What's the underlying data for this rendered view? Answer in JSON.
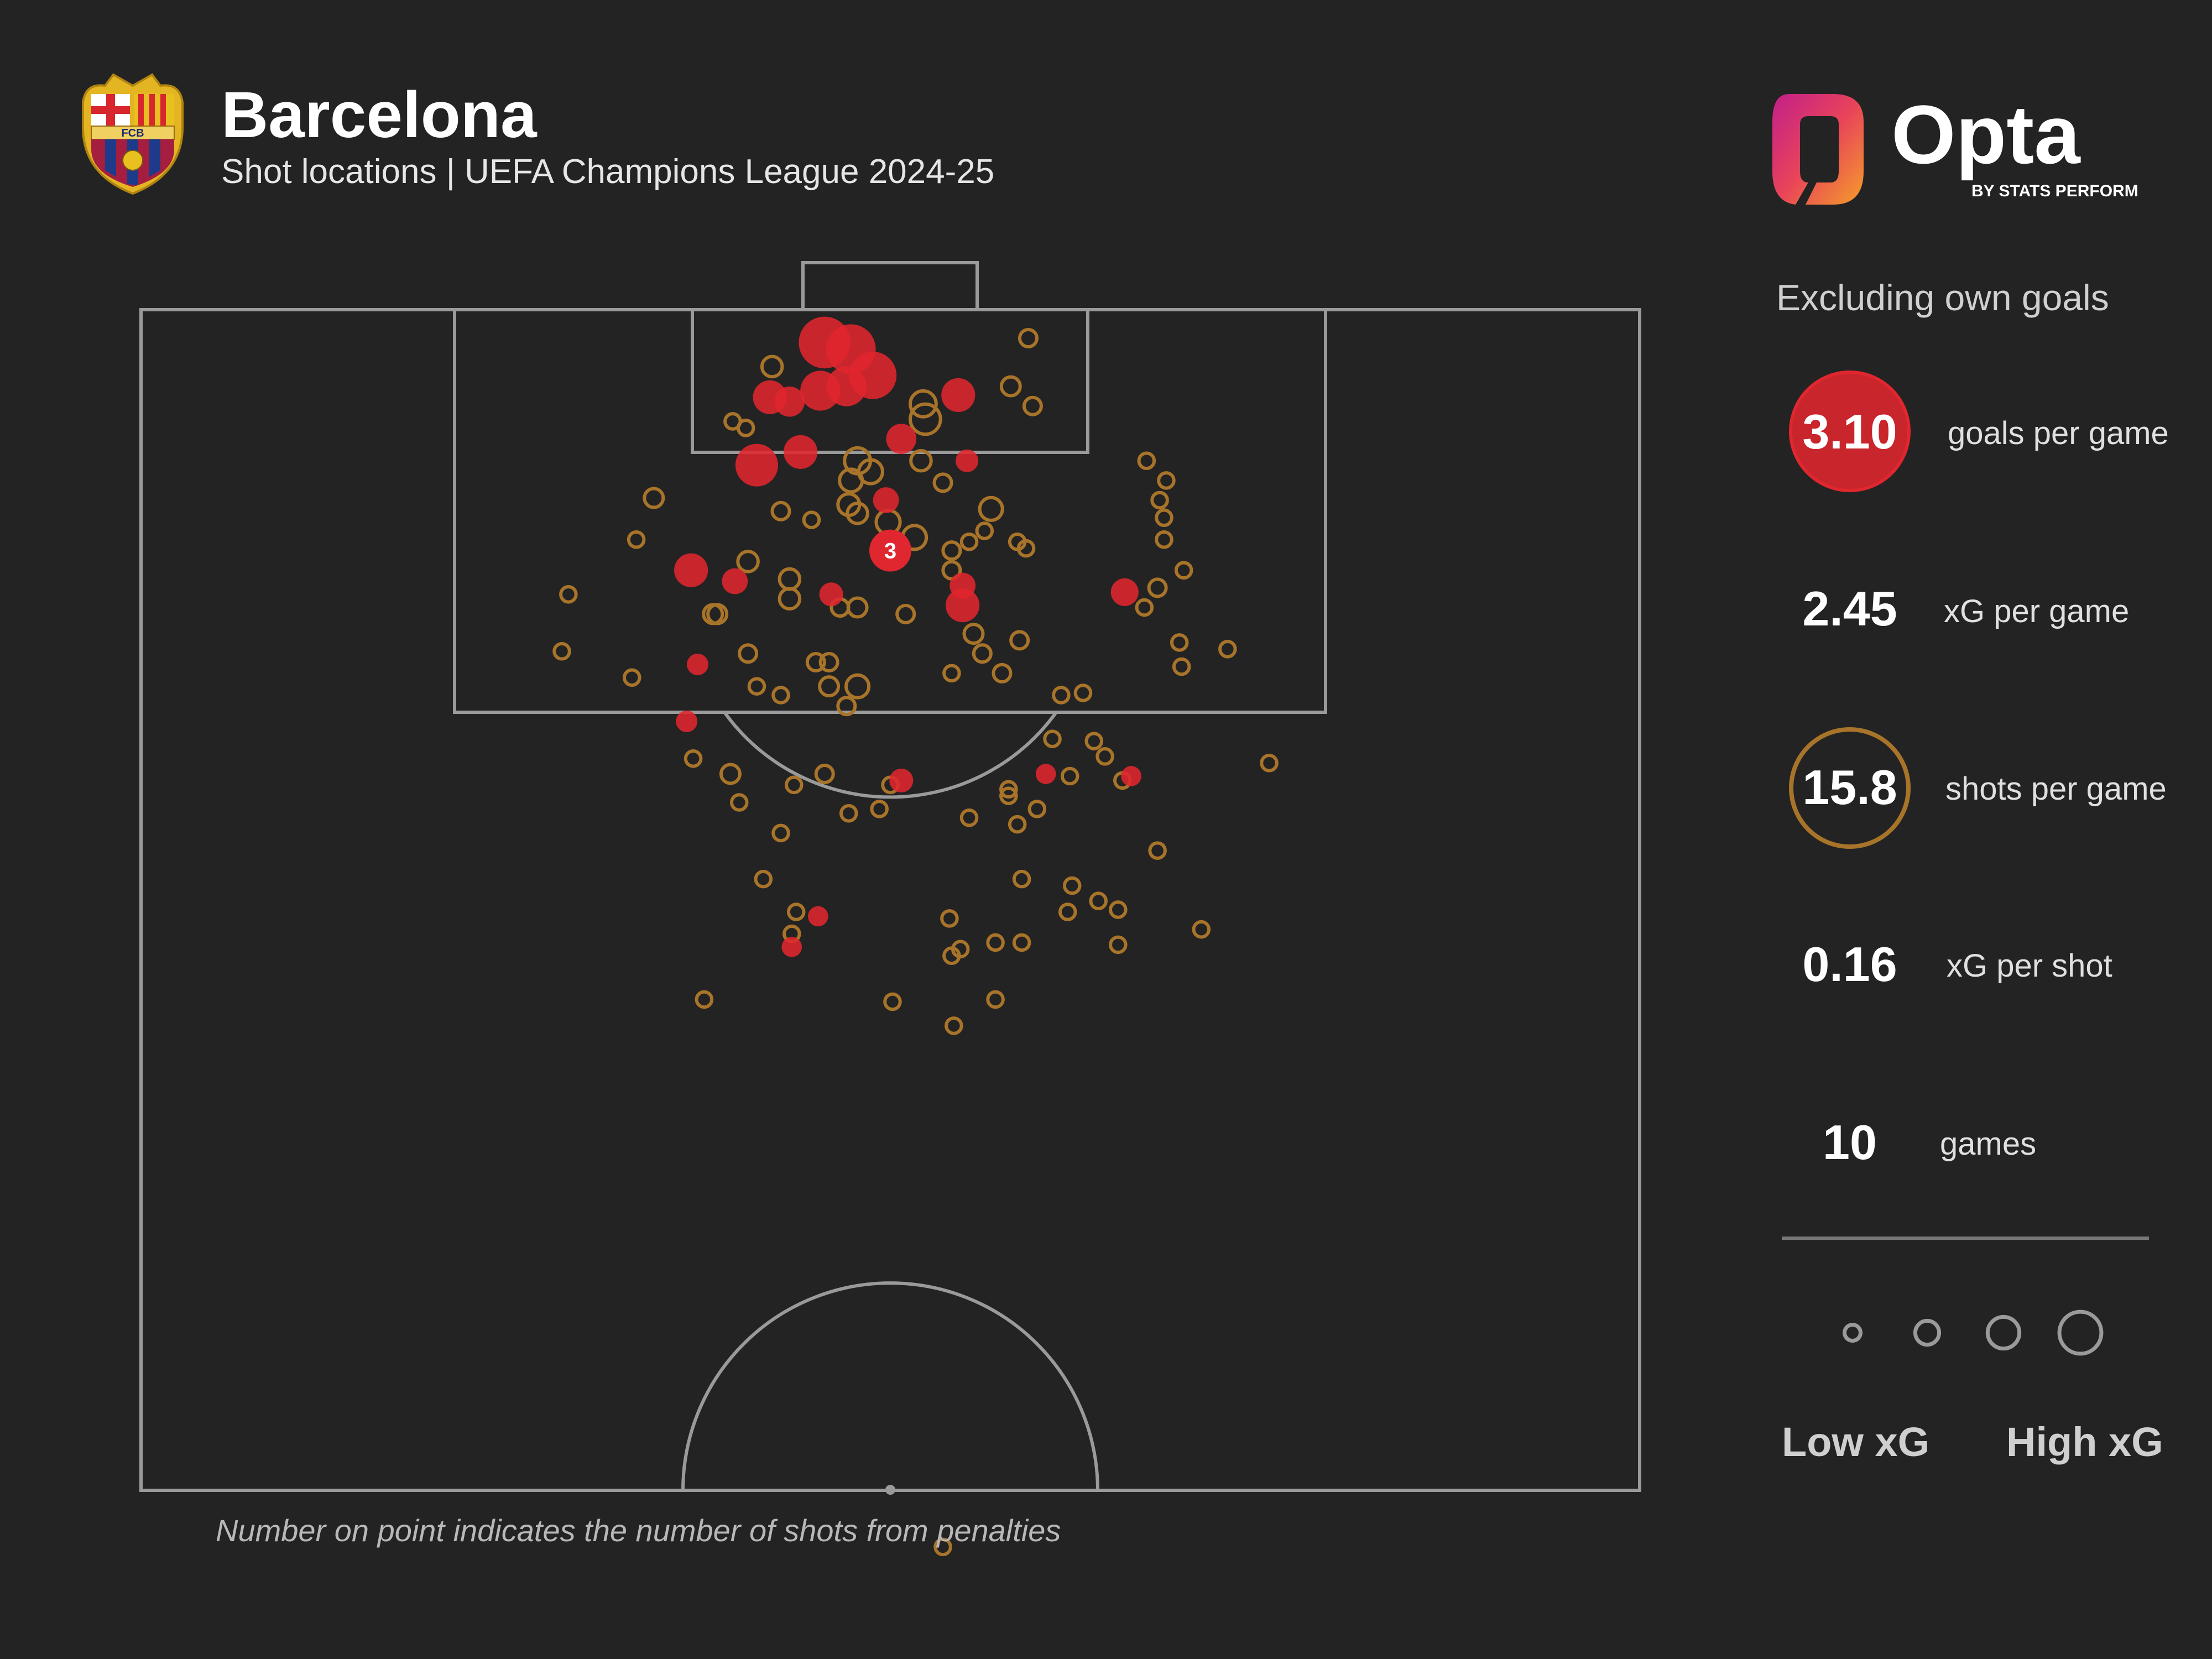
{
  "header": {
    "title": "Barcelona",
    "subtitle": "Shot locations | UEFA Champions League 2024-25",
    "crest_text": "FCB"
  },
  "brand": {
    "name": "Opta",
    "tagline": "BY STATS PERFORM"
  },
  "colors": {
    "background": "#232323",
    "goal": "#e0262e",
    "shot": "#a8742a",
    "lines": "#9a9a9a"
  },
  "panel": {
    "note": "Excluding own goals",
    "stats": [
      {
        "value": "3.10",
        "label": "goals per game"
      },
      {
        "value": "2.45",
        "label": "xG per game"
      },
      {
        "value": "15.8",
        "label": "shots per game"
      },
      {
        "value": "0.16",
        "label": "xG per shot"
      },
      {
        "value": "10",
        "label": "games"
      }
    ],
    "legend_low": "Low xG",
    "legend_high": "High xG"
  },
  "footnote": "Number on point indicates the number of shots from penalties",
  "chart_data": {
    "type": "scatter",
    "units": "horizontal metres from pitch centre (x), metres from goal line (y); xG proportional to marker area",
    "annotation": {
      "x": 0,
      "y": 11,
      "text": "3",
      "outcome": "goal"
    },
    "points": [
      {
        "x": -3.0,
        "y": 1.5,
        "xg": 0.55,
        "outcome": "goal"
      },
      {
        "x": -1.8,
        "y": 1.8,
        "xg": 0.5,
        "outcome": "goal"
      },
      {
        "x": -0.8,
        "y": 3.0,
        "xg": 0.45,
        "outcome": "goal"
      },
      {
        "x": -2.0,
        "y": 3.5,
        "xg": 0.3,
        "outcome": "goal"
      },
      {
        "x": -3.2,
        "y": 3.7,
        "xg": 0.3,
        "outcome": "goal"
      },
      {
        "x": -5.5,
        "y": 4.0,
        "xg": 0.2,
        "outcome": "goal"
      },
      {
        "x": -4.6,
        "y": 4.2,
        "xg": 0.15,
        "outcome": "goal"
      },
      {
        "x": 3.1,
        "y": 3.9,
        "xg": 0.2,
        "outcome": "goal"
      },
      {
        "x": -6.1,
        "y": 7.1,
        "xg": 0.35,
        "outcome": "goal"
      },
      {
        "x": -4.1,
        "y": 6.5,
        "xg": 0.2,
        "outcome": "goal"
      },
      {
        "x": 0.5,
        "y": 5.9,
        "xg": 0.15,
        "outcome": "goal"
      },
      {
        "x": 3.5,
        "y": 6.9,
        "xg": 0.07,
        "outcome": "goal"
      },
      {
        "x": -0.2,
        "y": 8.7,
        "xg": 0.1,
        "outcome": "goal"
      },
      {
        "x": -9.1,
        "y": 11.9,
        "xg": 0.2,
        "outcome": "goal"
      },
      {
        "x": -7.1,
        "y": 12.4,
        "xg": 0.1,
        "outcome": "goal"
      },
      {
        "x": -2.7,
        "y": 13.0,
        "xg": 0.08,
        "outcome": "goal"
      },
      {
        "x": 3.3,
        "y": 12.6,
        "xg": 0.1,
        "outcome": "goal"
      },
      {
        "x": 3.3,
        "y": 13.5,
        "xg": 0.2,
        "outcome": "goal"
      },
      {
        "x": 10.7,
        "y": 12.9,
        "xg": 0.12,
        "outcome": "goal"
      },
      {
        "x": -8.8,
        "y": 16.2,
        "xg": 0.06,
        "outcome": "goal"
      },
      {
        "x": -9.3,
        "y": 18.8,
        "xg": 0.06,
        "outcome": "goal"
      },
      {
        "x": 0.5,
        "y": 21.5,
        "xg": 0.08,
        "outcome": "goal"
      },
      {
        "x": 7.1,
        "y": 21.2,
        "xg": 0.05,
        "outcome": "goal"
      },
      {
        "x": 11.0,
        "y": 21.3,
        "xg": 0.05,
        "outcome": "goal"
      },
      {
        "x": -3.3,
        "y": 27.7,
        "xg": 0.05,
        "outcome": "goal"
      },
      {
        "x": -4.5,
        "y": 29.1,
        "xg": 0.05,
        "outcome": "goal"
      },
      {
        "x": -5.4,
        "y": 2.6,
        "xg": 0.05,
        "outcome": "shot"
      },
      {
        "x": 6.3,
        "y": 1.3,
        "xg": 0.03,
        "outcome": "shot"
      },
      {
        "x": 5.5,
        "y": 3.5,
        "xg": 0.04,
        "outcome": "shot"
      },
      {
        "x": 6.5,
        "y": 4.4,
        "xg": 0.03,
        "outcome": "shot"
      },
      {
        "x": 1.5,
        "y": 4.3,
        "xg": 0.1,
        "outcome": "shot"
      },
      {
        "x": 1.6,
        "y": 5.0,
        "xg": 0.15,
        "outcome": "shot"
      },
      {
        "x": -7.2,
        "y": 5.1,
        "xg": 0.02,
        "outcome": "shot"
      },
      {
        "x": -6.6,
        "y": 5.4,
        "xg": 0.02,
        "outcome": "shot"
      },
      {
        "x": -1.5,
        "y": 6.9,
        "xg": 0.1,
        "outcome": "shot"
      },
      {
        "x": -0.9,
        "y": 7.4,
        "xg": 0.08,
        "outcome": "shot"
      },
      {
        "x": -1.8,
        "y": 7.8,
        "xg": 0.07,
        "outcome": "shot"
      },
      {
        "x": 1.4,
        "y": 6.9,
        "xg": 0.05,
        "outcome": "shot"
      },
      {
        "x": 2.4,
        "y": 7.9,
        "xg": 0.03,
        "outcome": "shot"
      },
      {
        "x": -1.9,
        "y": 8.9,
        "xg": 0.06,
        "outcome": "shot"
      },
      {
        "x": -1.5,
        "y": 9.3,
        "xg": 0.05,
        "outcome": "shot"
      },
      {
        "x": -0.1,
        "y": 9.7,
        "xg": 0.08,
        "outcome": "shot"
      },
      {
        "x": 1.1,
        "y": 10.4,
        "xg": 0.08,
        "outcome": "shot"
      },
      {
        "x": -5.0,
        "y": 9.2,
        "xg": 0.03,
        "outcome": "shot"
      },
      {
        "x": -3.6,
        "y": 9.6,
        "xg": 0.02,
        "outcome": "shot"
      },
      {
        "x": -10.8,
        "y": 8.6,
        "xg": 0.04,
        "outcome": "shot"
      },
      {
        "x": -11.6,
        "y": 10.5,
        "xg": 0.02,
        "outcome": "shot"
      },
      {
        "x": -14.7,
        "y": 13.0,
        "xg": 0.02,
        "outcome": "shot"
      },
      {
        "x": -15.0,
        "y": 15.6,
        "xg": 0.02,
        "outcome": "shot"
      },
      {
        "x": -6.5,
        "y": 11.5,
        "xg": 0.05,
        "outcome": "shot"
      },
      {
        "x": -4.6,
        "y": 12.3,
        "xg": 0.05,
        "outcome": "shot"
      },
      {
        "x": -4.6,
        "y": 13.2,
        "xg": 0.05,
        "outcome": "shot"
      },
      {
        "x": -7.9,
        "y": 13.9,
        "xg": 0.04,
        "outcome": "shot"
      },
      {
        "x": -8.1,
        "y": 13.9,
        "xg": 0.04,
        "outcome": "shot"
      },
      {
        "x": -2.3,
        "y": 13.6,
        "xg": 0.03,
        "outcome": "shot"
      },
      {
        "x": -1.5,
        "y": 13.6,
        "xg": 0.04,
        "outcome": "shot"
      },
      {
        "x": 0.7,
        "y": 13.9,
        "xg": 0.03,
        "outcome": "shot"
      },
      {
        "x": -6.5,
        "y": 15.7,
        "xg": 0.03,
        "outcome": "shot"
      },
      {
        "x": -3.4,
        "y": 16.1,
        "xg": 0.03,
        "outcome": "shot"
      },
      {
        "x": -2.8,
        "y": 16.1,
        "xg": 0.03,
        "outcome": "shot"
      },
      {
        "x": -2.8,
        "y": 17.2,
        "xg": 0.04,
        "outcome": "shot"
      },
      {
        "x": -1.5,
        "y": 17.2,
        "xg": 0.07,
        "outcome": "shot"
      },
      {
        "x": -2.0,
        "y": 18.1,
        "xg": 0.03,
        "outcome": "shot"
      },
      {
        "x": -5.0,
        "y": 17.6,
        "xg": 0.02,
        "outcome": "shot"
      },
      {
        "x": 2.8,
        "y": 11.0,
        "xg": 0.03,
        "outcome": "shot"
      },
      {
        "x": 2.8,
        "y": 11.9,
        "xg": 0.03,
        "outcome": "shot"
      },
      {
        "x": 3.6,
        "y": 10.6,
        "xg": 0.02,
        "outcome": "shot"
      },
      {
        "x": 4.3,
        "y": 10.1,
        "xg": 0.02,
        "outcome": "shot"
      },
      {
        "x": 4.6,
        "y": 9.1,
        "xg": 0.07,
        "outcome": "shot"
      },
      {
        "x": 3.8,
        "y": 14.8,
        "xg": 0.04,
        "outcome": "shot"
      },
      {
        "x": 4.2,
        "y": 15.7,
        "xg": 0.03,
        "outcome": "shot"
      },
      {
        "x": 5.9,
        "y": 15.1,
        "xg": 0.03,
        "outcome": "shot"
      },
      {
        "x": 5.1,
        "y": 16.6,
        "xg": 0.03,
        "outcome": "shot"
      },
      {
        "x": 2.8,
        "y": 16.6,
        "xg": 0.02,
        "outcome": "shot"
      },
      {
        "x": 5.8,
        "y": 10.6,
        "xg": 0.02,
        "outcome": "shot"
      },
      {
        "x": 6.2,
        "y": 10.9,
        "xg": 0.02,
        "outcome": "shot"
      },
      {
        "x": 7.4,
        "y": 19.6,
        "xg": 0.02,
        "outcome": "shot"
      },
      {
        "x": 7.8,
        "y": 17.6,
        "xg": 0.02,
        "outcome": "shot"
      },
      {
        "x": 8.8,
        "y": 17.5,
        "xg": 0.02,
        "outcome": "shot"
      },
      {
        "x": 5.4,
        "y": 21.9,
        "xg": 0.02,
        "outcome": "shot"
      },
      {
        "x": 5.4,
        "y": 22.2,
        "xg": 0.02,
        "outcome": "shot"
      },
      {
        "x": 3.6,
        "y": 23.2,
        "xg": 0.02,
        "outcome": "shot"
      },
      {
        "x": 5.8,
        "y": 23.5,
        "xg": 0.02,
        "outcome": "shot"
      },
      {
        "x": 6.7,
        "y": 22.8,
        "xg": 0.02,
        "outcome": "shot"
      },
      {
        "x": 8.2,
        "y": 21.3,
        "xg": 0.02,
        "outcome": "shot"
      },
      {
        "x": 9.3,
        "y": 19.7,
        "xg": 0.02,
        "outcome": "shot"
      },
      {
        "x": 9.8,
        "y": 20.4,
        "xg": 0.02,
        "outcome": "shot"
      },
      {
        "x": 10.6,
        "y": 21.5,
        "xg": 0.02,
        "outcome": "shot"
      },
      {
        "x": 12.2,
        "y": 12.7,
        "xg": 0.03,
        "outcome": "shot"
      },
      {
        "x": 13.4,
        "y": 11.9,
        "xg": 0.02,
        "outcome": "shot"
      },
      {
        "x": 12.5,
        "y": 10.5,
        "xg": 0.02,
        "outcome": "shot"
      },
      {
        "x": 12.5,
        "y": 9.5,
        "xg": 0.02,
        "outcome": "shot"
      },
      {
        "x": 12.6,
        "y": 7.8,
        "xg": 0.02,
        "outcome": "shot"
      },
      {
        "x": 11.7,
        "y": 6.9,
        "xg": 0.02,
        "outcome": "shot"
      },
      {
        "x": 12.3,
        "y": 8.7,
        "xg": 0.02,
        "outcome": "shot"
      },
      {
        "x": 13.2,
        "y": 15.2,
        "xg": 0.02,
        "outcome": "shot"
      },
      {
        "x": 13.3,
        "y": 16.3,
        "xg": 0.02,
        "outcome": "shot"
      },
      {
        "x": 15.4,
        "y": 15.5,
        "xg": 0.02,
        "outcome": "shot"
      },
      {
        "x": 11.6,
        "y": 13.6,
        "xg": 0.02,
        "outcome": "shot"
      },
      {
        "x": -11.8,
        "y": 16.8,
        "xg": 0.02,
        "outcome": "shot"
      },
      {
        "x": -6.1,
        "y": 17.2,
        "xg": 0.02,
        "outcome": "shot"
      },
      {
        "x": -9.0,
        "y": 20.5,
        "xg": 0.02,
        "outcome": "shot"
      },
      {
        "x": -7.3,
        "y": 21.2,
        "xg": 0.04,
        "outcome": "shot"
      },
      {
        "x": -4.4,
        "y": 21.7,
        "xg": 0.02,
        "outcome": "shot"
      },
      {
        "x": -1.9,
        "y": 23.0,
        "xg": 0.02,
        "outcome": "shot"
      },
      {
        "x": 0.0,
        "y": 21.7,
        "xg": 0.02,
        "outcome": "shot"
      },
      {
        "x": -0.5,
        "y": 22.8,
        "xg": 0.02,
        "outcome": "shot"
      },
      {
        "x": -3.0,
        "y": 21.2,
        "xg": 0.03,
        "outcome": "shot"
      },
      {
        "x": -6.9,
        "y": 22.5,
        "xg": 0.02,
        "outcome": "shot"
      },
      {
        "x": -5.0,
        "y": 23.9,
        "xg": 0.02,
        "outcome": "shot"
      },
      {
        "x": -5.8,
        "y": 26.0,
        "xg": 0.02,
        "outcome": "shot"
      },
      {
        "x": -4.3,
        "y": 27.5,
        "xg": 0.02,
        "outcome": "shot"
      },
      {
        "x": -4.5,
        "y": 28.5,
        "xg": 0.02,
        "outcome": "shot"
      },
      {
        "x": -8.5,
        "y": 31.5,
        "xg": 0.02,
        "outcome": "shot"
      },
      {
        "x": 0.1,
        "y": 31.6,
        "xg": 0.02,
        "outcome": "shot"
      },
      {
        "x": 2.7,
        "y": 27.8,
        "xg": 0.02,
        "outcome": "shot"
      },
      {
        "x": 2.8,
        "y": 29.5,
        "xg": 0.02,
        "outcome": "shot"
      },
      {
        "x": 3.2,
        "y": 29.2,
        "xg": 0.02,
        "outcome": "shot"
      },
      {
        "x": 4.8,
        "y": 28.9,
        "xg": 0.02,
        "outcome": "shot"
      },
      {
        "x": 6.0,
        "y": 28.9,
        "xg": 0.02,
        "outcome": "shot"
      },
      {
        "x": 6.0,
        "y": 26.0,
        "xg": 0.02,
        "outcome": "shot"
      },
      {
        "x": 8.1,
        "y": 27.5,
        "xg": 0.02,
        "outcome": "shot"
      },
      {
        "x": 8.3,
        "y": 26.3,
        "xg": 0.02,
        "outcome": "shot"
      },
      {
        "x": 9.5,
        "y": 27.0,
        "xg": 0.02,
        "outcome": "shot"
      },
      {
        "x": 10.4,
        "y": 29.0,
        "xg": 0.02,
        "outcome": "shot"
      },
      {
        "x": 10.4,
        "y": 27.4,
        "xg": 0.02,
        "outcome": "shot"
      },
      {
        "x": 12.2,
        "y": 24.7,
        "xg": 0.02,
        "outcome": "shot"
      },
      {
        "x": 14.2,
        "y": 28.3,
        "xg": 0.02,
        "outcome": "shot"
      },
      {
        "x": 17.3,
        "y": 20.7,
        "xg": 0.02,
        "outcome": "shot"
      },
      {
        "x": 4.8,
        "y": 31.5,
        "xg": 0.02,
        "outcome": "shot"
      },
      {
        "x": 2.9,
        "y": 32.7,
        "xg": 0.02,
        "outcome": "shot"
      },
      {
        "x": 2.4,
        "y": 56.5,
        "xg": 0.02,
        "outcome": "shot"
      }
    ],
    "legend": {
      "sizes_xg": [
        0.02,
        0.07,
        0.15,
        0.3
      ]
    }
  }
}
